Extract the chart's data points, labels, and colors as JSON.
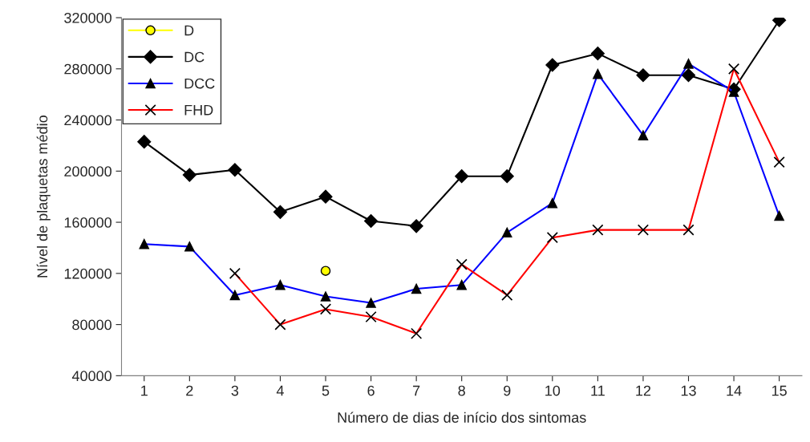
{
  "chart_data": {
    "type": "line",
    "xlabel": "Número de dias de início dos sintomas",
    "ylabel": "Nível de plaquetas médio",
    "categories": [
      "1",
      "2",
      "3",
      "4",
      "5",
      "6",
      "7",
      "8",
      "9",
      "10",
      "11",
      "12",
      "13",
      "14",
      "15"
    ],
    "ylim": [
      40000,
      320000
    ],
    "yticks": [
      40000,
      80000,
      120000,
      160000,
      200000,
      240000,
      280000,
      320000
    ],
    "grid": false,
    "legend": "top left",
    "series": [
      {
        "name": "D",
        "color": "#ffff00",
        "marker": "circle",
        "values": [
          null,
          null,
          null,
          null,
          122000,
          null,
          null,
          null,
          null,
          null,
          null,
          null,
          null,
          null,
          null
        ]
      },
      {
        "name": "DC",
        "color": "#000000",
        "marker": "diamond",
        "values": [
          223000,
          197000,
          201000,
          168000,
          180000,
          161000,
          157000,
          196000,
          196000,
          283000,
          292000,
          275000,
          275000,
          264000,
          318000
        ]
      },
      {
        "name": "DCC",
        "color": "#0000ff",
        "marker": "triangle",
        "values": [
          143000,
          141000,
          103000,
          111000,
          102000,
          97000,
          108000,
          111000,
          152000,
          175000,
          276000,
          228000,
          284000,
          262000,
          165000
        ]
      },
      {
        "name": "FHD",
        "color": "#ff0000",
        "marker": "cross",
        "values": [
          null,
          null,
          120000,
          80000,
          92000,
          86000,
          73000,
          127000,
          103000,
          148000,
          154000,
          154000,
          154000,
          280000,
          207000
        ]
      }
    ]
  }
}
